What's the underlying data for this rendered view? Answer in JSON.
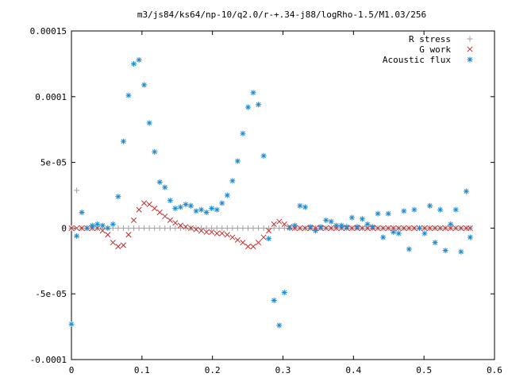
{
  "chart_data": {
    "type": "scatter",
    "title": "m3/js84/ks64/np-10/q2.0/r-+.34-j88/logRho-1.5/M1.03/256",
    "xlabel": "",
    "ylabel": "",
    "xlim": [
      0,
      0.6
    ],
    "ylim": [
      -0.0001,
      0.00015
    ],
    "x_ticks": [
      0,
      0.1,
      0.2,
      0.3,
      0.4,
      0.5,
      0.6
    ],
    "x_tick_labels": [
      "0",
      "0.1",
      "0.2",
      "0.3",
      "0.4",
      "0.5",
      "0.6"
    ],
    "y_ticks": [
      -0.0001,
      -5e-05,
      0,
      5e-05,
      0.0001,
      0.00015
    ],
    "y_tick_labels": [
      "-0.0001",
      "-5e-05",
      "0",
      "5e-05",
      "0.0001",
      "0.00015"
    ],
    "grid": false,
    "legend_position": "top-right",
    "series": [
      {
        "name": "R stress",
        "marker": "plus",
        "color": "#a0a0a0",
        "points": [
          [
            0.0,
            0.0
          ],
          [
            0.0074,
            2.87e-05
          ],
          [
            0.0147,
            0.0
          ],
          [
            0.0221,
            0.0
          ],
          [
            0.0295,
            0.0
          ],
          [
            0.0368,
            0.0
          ],
          [
            0.0442,
            0.0
          ],
          [
            0.0516,
            0.0
          ],
          [
            0.0589,
            0.0
          ],
          [
            0.0663,
            0.0
          ],
          [
            0.0737,
            0.0
          ],
          [
            0.081,
            0.0
          ],
          [
            0.0884,
            0.0
          ],
          [
            0.0958,
            0.0
          ],
          [
            0.1031,
            0.0
          ],
          [
            0.1105,
            0.0
          ],
          [
            0.1179,
            0.0
          ],
          [
            0.1252,
            0.0
          ],
          [
            0.1326,
            0.0
          ],
          [
            0.14,
            0.0
          ],
          [
            0.1473,
            0.0
          ],
          [
            0.1547,
            0.0
          ],
          [
            0.1621,
            0.0
          ],
          [
            0.1694,
            0.0
          ],
          [
            0.1768,
            0.0
          ],
          [
            0.1842,
            0.0
          ],
          [
            0.1915,
            0.0
          ],
          [
            0.1989,
            0.0
          ],
          [
            0.2063,
            0.0
          ],
          [
            0.2136,
            0.0
          ],
          [
            0.221,
            0.0
          ],
          [
            0.2284,
            0.0
          ],
          [
            0.2357,
            0.0
          ],
          [
            0.2431,
            0.0
          ],
          [
            0.2505,
            0.0
          ],
          [
            0.2578,
            0.0
          ],
          [
            0.2652,
            0.0
          ],
          [
            0.2726,
            0.0
          ],
          [
            0.2799,
            0.0
          ],
          [
            0.2873,
            0.0
          ],
          [
            0.2947,
            0.0
          ],
          [
            0.302,
            0.0
          ],
          [
            0.3094,
            0.0
          ],
          [
            0.3168,
            0.0
          ],
          [
            0.3241,
            0.0
          ],
          [
            0.3315,
            0.0
          ],
          [
            0.3389,
            0.0
          ],
          [
            0.3462,
            0.0
          ],
          [
            0.3536,
            0.0
          ],
          [
            0.361,
            0.0
          ],
          [
            0.3683,
            0.0
          ],
          [
            0.3757,
            0.0
          ],
          [
            0.3831,
            0.0
          ],
          [
            0.3904,
            0.0
          ],
          [
            0.3978,
            0.0
          ],
          [
            0.4052,
            0.0
          ],
          [
            0.4125,
            0.0
          ],
          [
            0.4199,
            0.0
          ],
          [
            0.4273,
            0.0
          ],
          [
            0.4346,
            0.0
          ],
          [
            0.442,
            0.0
          ],
          [
            0.4494,
            0.0
          ],
          [
            0.4567,
            0.0
          ],
          [
            0.4641,
            0.0
          ],
          [
            0.4715,
            0.0
          ],
          [
            0.4788,
            0.0
          ],
          [
            0.4862,
            0.0
          ],
          [
            0.4936,
            0.0
          ],
          [
            0.5009,
            0.0
          ],
          [
            0.5083,
            0.0
          ],
          [
            0.5157,
            0.0
          ],
          [
            0.523,
            0.0
          ],
          [
            0.5304,
            0.0
          ],
          [
            0.5378,
            0.0
          ],
          [
            0.5451,
            0.0
          ],
          [
            0.5525,
            0.0
          ],
          [
            0.5599,
            0.0
          ],
          [
            0.5655,
            0.0
          ]
        ]
      },
      {
        "name": "G work",
        "marker": "cross",
        "color": "#c03030",
        "points": [
          [
            0.0,
            0.0
          ],
          [
            0.0074,
            0.0
          ],
          [
            0.0147,
            0.0
          ],
          [
            0.0221,
            0.0
          ],
          [
            0.0295,
            0.0
          ],
          [
            0.0368,
            0.0
          ],
          [
            0.0442,
            -2e-06
          ],
          [
            0.0516,
            -5e-06
          ],
          [
            0.0589,
            -1.1e-05
          ],
          [
            0.0663,
            -1.4e-05
          ],
          [
            0.0737,
            -1.3e-05
          ],
          [
            0.081,
            -5e-06
          ],
          [
            0.0884,
            6e-06
          ],
          [
            0.0958,
            1.4e-05
          ],
          [
            0.1031,
            1.9e-05
          ],
          [
            0.1105,
            1.8e-05
          ],
          [
            0.1179,
            1.5e-05
          ],
          [
            0.1252,
            1.2e-05
          ],
          [
            0.1326,
            9e-06
          ],
          [
            0.14,
            6e-06
          ],
          [
            0.1473,
            4e-06
          ],
          [
            0.1547,
            2e-06
          ],
          [
            0.1621,
            1e-06
          ],
          [
            0.1694,
            0.0
          ],
          [
            0.1768,
            -1e-06
          ],
          [
            0.1842,
            -2e-06
          ],
          [
            0.1915,
            -3e-06
          ],
          [
            0.1989,
            -3e-06
          ],
          [
            0.2063,
            -4e-06
          ],
          [
            0.2136,
            -4e-06
          ],
          [
            0.221,
            -5e-06
          ],
          [
            0.2284,
            -7e-06
          ],
          [
            0.2357,
            -9e-06
          ],
          [
            0.2431,
            -1.1e-05
          ],
          [
            0.2505,
            -1.4e-05
          ],
          [
            0.2578,
            -1.4e-05
          ],
          [
            0.2652,
            -1.1e-05
          ],
          [
            0.2726,
            -7e-06
          ],
          [
            0.2799,
            -2e-06
          ],
          [
            0.2873,
            3e-06
          ],
          [
            0.2947,
            5e-06
          ],
          [
            0.302,
            3e-06
          ],
          [
            0.3094,
            1e-06
          ],
          [
            0.3168,
            0.0
          ],
          [
            0.3241,
            0.0
          ],
          [
            0.3315,
            0.0
          ],
          [
            0.3389,
            0.0
          ],
          [
            0.3462,
            0.0
          ],
          [
            0.3536,
            0.0
          ],
          [
            0.361,
            0.0
          ],
          [
            0.3683,
            0.0
          ],
          [
            0.3757,
            0.0
          ],
          [
            0.3831,
            0.0
          ],
          [
            0.3904,
            0.0
          ],
          [
            0.3978,
            0.0
          ],
          [
            0.4052,
            0.0
          ],
          [
            0.4125,
            0.0
          ],
          [
            0.4199,
            0.0
          ],
          [
            0.4273,
            0.0
          ],
          [
            0.4346,
            0.0
          ],
          [
            0.442,
            0.0
          ],
          [
            0.4494,
            0.0
          ],
          [
            0.4567,
            0.0
          ],
          [
            0.4641,
            0.0
          ],
          [
            0.4715,
            0.0
          ],
          [
            0.4788,
            0.0
          ],
          [
            0.4862,
            0.0
          ],
          [
            0.4936,
            0.0
          ],
          [
            0.5009,
            0.0
          ],
          [
            0.5083,
            0.0
          ],
          [
            0.5157,
            0.0
          ],
          [
            0.523,
            0.0
          ],
          [
            0.5304,
            0.0
          ],
          [
            0.5378,
            0.0
          ],
          [
            0.5451,
            0.0
          ],
          [
            0.5525,
            0.0
          ],
          [
            0.5599,
            0.0
          ],
          [
            0.5655,
            0.0
          ]
        ]
      },
      {
        "name": "Acoustic flux",
        "marker": "star",
        "color": "#1a8ad4",
        "points": [
          [
            0.0,
            -7.3e-05
          ],
          [
            0.0074,
            -6e-06
          ],
          [
            0.0147,
            1.2e-05
          ],
          [
            0.0221,
            0.0
          ],
          [
            0.0295,
            2e-06
          ],
          [
            0.0368,
            3e-06
          ],
          [
            0.0442,
            2e-06
          ],
          [
            0.0516,
            0.0
          ],
          [
            0.0589,
            3e-06
          ],
          [
            0.0663,
            2.4e-05
          ],
          [
            0.0737,
            6.6e-05
          ],
          [
            0.081,
            0.000101
          ],
          [
            0.0884,
            0.000125
          ],
          [
            0.0958,
            0.000128
          ],
          [
            0.1031,
            0.000109
          ],
          [
            0.1105,
            8e-05
          ],
          [
            0.1179,
            5.8e-05
          ],
          [
            0.1252,
            3.5e-05
          ],
          [
            0.1326,
            3.1e-05
          ],
          [
            0.14,
            2.1e-05
          ],
          [
            0.1473,
            1.5e-05
          ],
          [
            0.1547,
            1.6e-05
          ],
          [
            0.1621,
            1.8e-05
          ],
          [
            0.1694,
            1.7e-05
          ],
          [
            0.1768,
            1.3e-05
          ],
          [
            0.1842,
            1.4e-05
          ],
          [
            0.1915,
            1.2e-05
          ],
          [
            0.1989,
            1.5e-05
          ],
          [
            0.2063,
            1.4e-05
          ],
          [
            0.2136,
            1.9e-05
          ],
          [
            0.221,
            2.5e-05
          ],
          [
            0.2284,
            3.6e-05
          ],
          [
            0.2357,
            5.1e-05
          ],
          [
            0.2431,
            7.2e-05
          ],
          [
            0.2505,
            9.2e-05
          ],
          [
            0.2578,
            0.000103
          ],
          [
            0.2652,
            9.4e-05
          ],
          [
            0.2726,
            5.5e-05
          ],
          [
            0.2799,
            -8e-06
          ],
          [
            0.2873,
            -5.5e-05
          ],
          [
            0.2947,
            -7.4e-05
          ],
          [
            0.302,
            -4.9e-05
          ],
          [
            0.3094,
            0.0
          ],
          [
            0.3168,
            2e-06
          ],
          [
            0.3241,
            1.7e-05
          ],
          [
            0.3315,
            1.6e-05
          ],
          [
            0.3389,
            1e-06
          ],
          [
            0.3462,
            -2e-06
          ],
          [
            0.3536,
            1e-06
          ],
          [
            0.361,
            6e-06
          ],
          [
            0.3683,
            5e-06
          ],
          [
            0.3757,
            2e-06
          ],
          [
            0.3831,
            2e-06
          ],
          [
            0.3904,
            1e-06
          ],
          [
            0.3978,
            8e-06
          ],
          [
            0.4052,
            1e-06
          ],
          [
            0.4125,
            7e-06
          ],
          [
            0.4199,
            3e-06
          ],
          [
            0.4273,
            1e-06
          ],
          [
            0.4346,
            1.1e-05
          ],
          [
            0.442,
            -7e-06
          ],
          [
            0.4494,
            1.1e-05
          ],
          [
            0.4567,
            -3e-06
          ],
          [
            0.4641,
            -4e-06
          ],
          [
            0.4715,
            1.3e-05
          ],
          [
            0.4788,
            -1.6e-05
          ],
          [
            0.4862,
            1.4e-05
          ],
          [
            0.4936,
            0.0
          ],
          [
            0.5009,
            -4e-06
          ],
          [
            0.5083,
            1.7e-05
          ],
          [
            0.5157,
            -1.1e-05
          ],
          [
            0.523,
            1.4e-05
          ],
          [
            0.5304,
            -1.7e-05
          ],
          [
            0.5378,
            3e-06
          ],
          [
            0.5451,
            1.4e-05
          ],
          [
            0.5525,
            -1.8e-05
          ],
          [
            0.5599,
            2.8e-05
          ],
          [
            0.5655,
            -7e-06
          ]
        ]
      }
    ]
  }
}
